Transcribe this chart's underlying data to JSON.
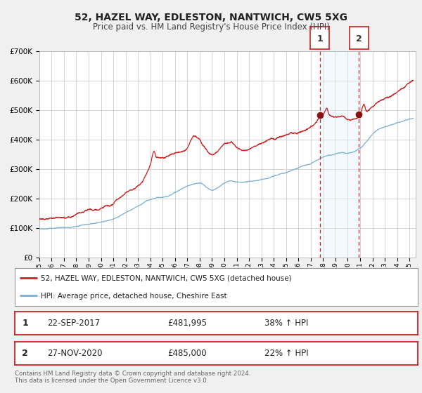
{
  "title": "52, HAZEL WAY, EDLESTON, NANTWICH, CW5 5XG",
  "subtitle": "Price paid vs. HM Land Registry's House Price Index (HPI)",
  "legend_line1": "52, HAZEL WAY, EDLESTON, NANTWICH, CW5 5XG (detached house)",
  "legend_line2": "HPI: Average price, detached house, Cheshire East",
  "annotation1_label": "1",
  "annotation1_date": "22-SEP-2017",
  "annotation1_price": "£481,995",
  "annotation1_hpi": "38% ↑ HPI",
  "annotation1_year": 2017.73,
  "annotation1_value": 481995,
  "annotation2_label": "2",
  "annotation2_date": "27-NOV-2020",
  "annotation2_price": "£485,000",
  "annotation2_hpi": "22% ↑ HPI",
  "annotation2_year": 2020.91,
  "annotation2_value": 485000,
  "hpi_color": "#7bafd4",
  "price_color": "#cc2222",
  "dot_color": "#881111",
  "vline1_color": "#cc2222",
  "vline2_color": "#cc2222",
  "span_color": "#ddeeff",
  "background_color": "#f0f0f0",
  "plot_bg_color": "#ffffff",
  "grid_color": "#cccccc",
  "ylim": [
    0,
    700000
  ],
  "xlim_start": 1995.0,
  "xlim_end": 2025.5,
  "footer": "Contains HM Land Registry data © Crown copyright and database right 2024.\nThis data is licensed under the Open Government Licence v3.0."
}
